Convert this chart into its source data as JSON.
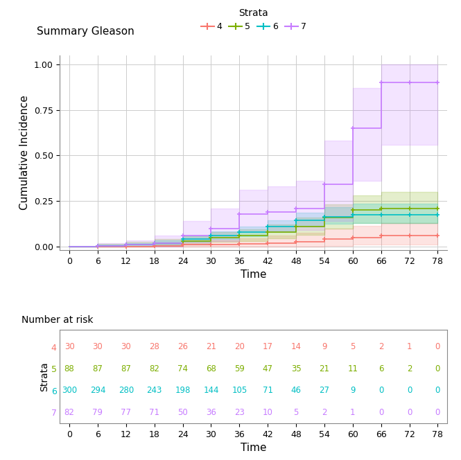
{
  "title": "Summary Gleason",
  "xlabel": "Time",
  "ylabel": "Cumulative Incidence",
  "xlim": [
    -2,
    80
  ],
  "ylim": [
    -0.02,
    1.05
  ],
  "xticks": [
    0,
    6,
    12,
    18,
    24,
    30,
    36,
    42,
    48,
    54,
    60,
    66,
    72,
    78
  ],
  "yticks": [
    0.0,
    0.25,
    0.5,
    0.75,
    1.0
  ],
  "strata": [
    "4",
    "5",
    "6",
    "7"
  ],
  "colors": {
    "4": "#F8766D",
    "5": "#7CAE00",
    "6": "#00BFC4",
    "7": "#C77CFF"
  },
  "ci_alpha": 0.2,
  "background_color": "#FFFFFF",
  "grid_color": "#CCCCCC",
  "number_at_risk": {
    "4": [
      30,
      30,
      30,
      28,
      26,
      21,
      20,
      17,
      14,
      9,
      5,
      2,
      1,
      0
    ],
    "5": [
      88,
      87,
      87,
      82,
      74,
      68,
      59,
      47,
      35,
      21,
      11,
      6,
      2,
      0
    ],
    "6": [
      300,
      294,
      280,
      243,
      198,
      144,
      105,
      71,
      46,
      27,
      9,
      0,
      0,
      0
    ],
    "7": [
      82,
      79,
      77,
      71,
      50,
      36,
      23,
      10,
      5,
      2,
      1,
      0,
      0,
      0
    ]
  },
  "curves": {
    "4": {
      "times": [
        0,
        6,
        12,
        18,
        24,
        30,
        36,
        42,
        48,
        54,
        60,
        66,
        72,
        78
      ],
      "est": [
        0.0,
        0.0,
        0.0,
        0.005,
        0.01,
        0.01,
        0.015,
        0.02,
        0.025,
        0.04,
        0.05,
        0.06,
        0.06,
        0.06
      ],
      "lower": [
        0.0,
        0.0,
        0.0,
        0.0,
        0.0,
        0.0,
        0.0,
        0.0,
        0.0,
        0.005,
        0.01,
        0.01,
        0.01,
        0.01
      ],
      "upper": [
        0.0,
        0.0,
        0.0,
        0.02,
        0.03,
        0.035,
        0.045,
        0.06,
        0.075,
        0.1,
        0.115,
        0.13,
        0.13,
        0.13
      ]
    },
    "5": {
      "times": [
        0,
        6,
        12,
        18,
        24,
        30,
        36,
        42,
        48,
        54,
        60,
        66,
        72,
        78
      ],
      "est": [
        0.0,
        0.005,
        0.01,
        0.02,
        0.03,
        0.05,
        0.06,
        0.08,
        0.11,
        0.16,
        0.2,
        0.21,
        0.21,
        0.21
      ],
      "lower": [
        0.0,
        0.0,
        0.0,
        0.005,
        0.01,
        0.025,
        0.03,
        0.045,
        0.065,
        0.1,
        0.13,
        0.13,
        0.13,
        0.13
      ],
      "upper": [
        0.0,
        0.015,
        0.025,
        0.04,
        0.055,
        0.08,
        0.095,
        0.12,
        0.16,
        0.23,
        0.28,
        0.3,
        0.3,
        0.3
      ]
    },
    "6": {
      "times": [
        0,
        6,
        12,
        18,
        24,
        30,
        36,
        42,
        48,
        54,
        60,
        66,
        72,
        78
      ],
      "est": [
        0.0,
        0.003,
        0.01,
        0.02,
        0.04,
        0.06,
        0.08,
        0.11,
        0.145,
        0.165,
        0.175,
        0.175,
        0.175,
        0.175
      ],
      "lower": [
        0.0,
        0.0,
        0.004,
        0.01,
        0.025,
        0.04,
        0.055,
        0.08,
        0.11,
        0.125,
        0.13,
        0.13,
        0.13,
        0.13
      ],
      "upper": [
        0.0,
        0.01,
        0.02,
        0.035,
        0.06,
        0.085,
        0.11,
        0.145,
        0.185,
        0.215,
        0.235,
        0.235,
        0.235,
        0.235
      ]
    },
    "7": {
      "times": [
        0,
        6,
        12,
        18,
        24,
        30,
        36,
        42,
        48,
        54,
        60,
        66,
        72,
        78
      ],
      "est": [
        0.0,
        0.005,
        0.01,
        0.02,
        0.06,
        0.1,
        0.18,
        0.19,
        0.21,
        0.34,
        0.65,
        0.9,
        0.9,
        0.9
      ],
      "lower": [
        0.0,
        0.0,
        0.0,
        0.0,
        0.01,
        0.03,
        0.08,
        0.085,
        0.09,
        0.14,
        0.36,
        0.56,
        0.56,
        0.56
      ],
      "upper": [
        0.0,
        0.02,
        0.035,
        0.06,
        0.14,
        0.21,
        0.31,
        0.33,
        0.36,
        0.58,
        0.87,
        1.0,
        1.0,
        1.0
      ]
    }
  }
}
